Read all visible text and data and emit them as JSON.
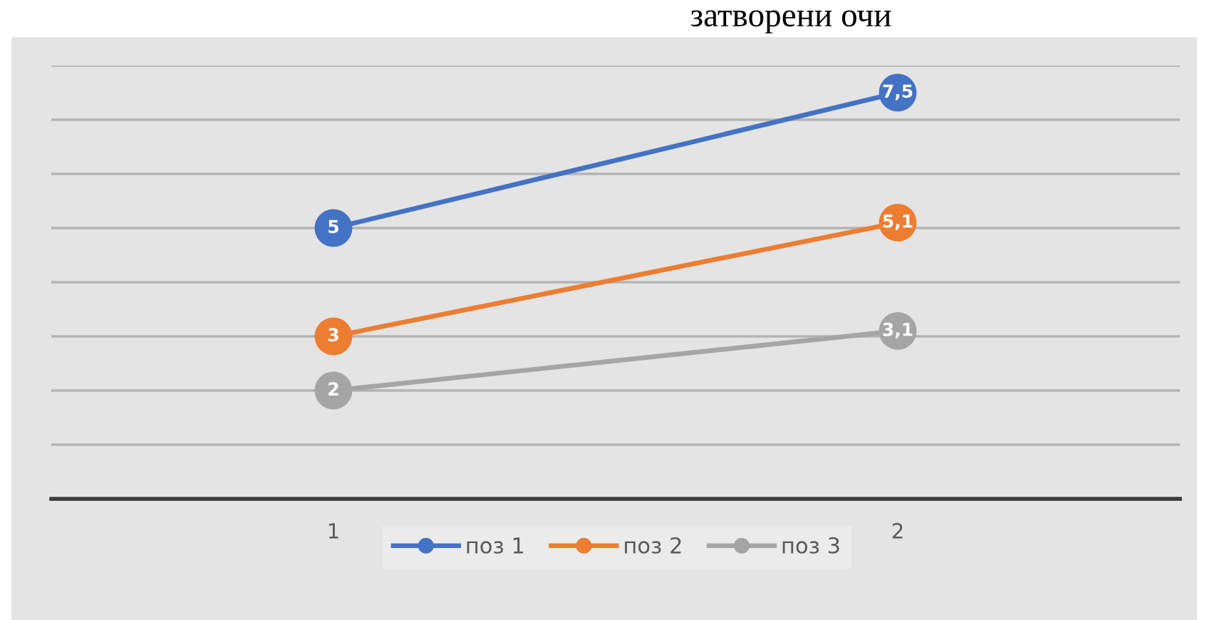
{
  "chart_data": {
    "type": "line",
    "title": "затворени очи",
    "categories": [
      "1",
      "2"
    ],
    "series": [
      {
        "name": "поз 1",
        "color": "#4472c4",
        "values": [
          5,
          7.5
        ],
        "value_labels": [
          "5",
          "7,5"
        ]
      },
      {
        "name": "поз 2",
        "color": "#ed7d31",
        "values": [
          3,
          5.1
        ],
        "value_labels": [
          "3",
          "5,1"
        ]
      },
      {
        "name": "поз 3",
        "color": "#a5a5a5",
        "values": [
          2,
          3.1
        ],
        "value_labels": [
          "2",
          "3,1"
        ]
      }
    ],
    "tick_labels": "x",
    "grid": "y",
    "legend": "bottom",
    "marker": "circle",
    "line_style": "solid"
  }
}
